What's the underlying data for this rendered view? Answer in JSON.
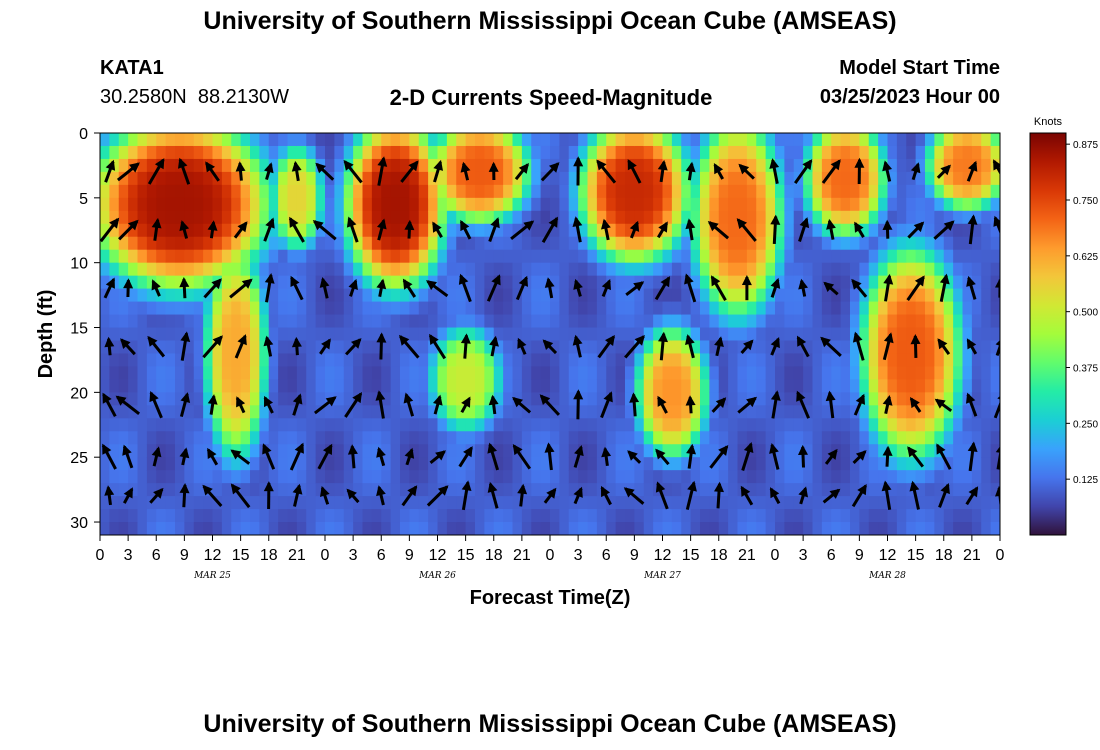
{
  "page_title": "University of Southern Mississippi Ocean Cube (AMSEAS)",
  "footer_title": "University of Southern Mississippi Ocean Cube (AMSEAS)",
  "station": {
    "id": "KATA1",
    "coords": "30.2580N  88.2130W"
  },
  "model_start": {
    "label": "Model Start Time",
    "value": "03/25/2023 Hour 00"
  },
  "chart_data": {
    "type": "heatmap",
    "title": "2-D Currents Speed-Magnitude",
    "xlabel": "Forecast Time(Z)",
    "ylabel": "Depth (ft)",
    "x_tick_labels": [
      "0",
      "3",
      "6",
      "9",
      "12",
      "15",
      "18",
      "21",
      "0",
      "3",
      "6",
      "9",
      "12",
      "15",
      "18",
      "21",
      "0",
      "3",
      "6",
      "9",
      "12",
      "15",
      "18",
      "21",
      "0",
      "3",
      "6",
      "9",
      "12",
      "15",
      "18",
      "21",
      "0"
    ],
    "x_range_hours": [
      0,
      96
    ],
    "date_labels": [
      {
        "label": "MAR 25",
        "hour": 12
      },
      {
        "label": "MAR 26",
        "hour": 36
      },
      {
        "label": "MAR 27",
        "hour": 60
      },
      {
        "label": "MAR 28",
        "hour": 84
      }
    ],
    "y_ticks": [
      0,
      5,
      10,
      15,
      20,
      25,
      30
    ],
    "y_range_ft": [
      0,
      31
    ],
    "y_inverted": true,
    "colorbar": {
      "unit_label": "Knots",
      "ticks": [
        0.125,
        0.25,
        0.375,
        0.5,
        0.625,
        0.75,
        0.875
      ],
      "tick_labels": [
        "0.125",
        "0.250",
        "0.375",
        "0.500",
        "0.625",
        "0.750",
        "0.875"
      ],
      "range": [
        0,
        0.9
      ],
      "colormap": "turbo"
    },
    "high_speed_regions_knots": [
      {
        "hour_range": [
          0,
          17
        ],
        "depth_range_ft": [
          0,
          11
        ],
        "peak": 0.85
      },
      {
        "hour_range": [
          12,
          17
        ],
        "depth_range_ft": [
          10,
          24
        ],
        "peak": 0.62
      },
      {
        "hour_range": [
          19,
          23
        ],
        "depth_range_ft": [
          2,
          8
        ],
        "peak": 0.55
      },
      {
        "hour_range": [
          27,
          36
        ],
        "depth_range_ft": [
          0,
          11
        ],
        "peak": 0.85
      },
      {
        "hour_range": [
          36,
          45
        ],
        "depth_range_ft": [
          0,
          6
        ],
        "peak": 0.72
      },
      {
        "hour_range": [
          36,
          42
        ],
        "depth_range_ft": [
          16,
          22
        ],
        "peak": 0.5
      },
      {
        "hour_range": [
          52,
          62
        ],
        "depth_range_ft": [
          0,
          9
        ],
        "peak": 0.8
      },
      {
        "hour_range": [
          58,
          64
        ],
        "depth_range_ft": [
          16,
          24
        ],
        "peak": 0.65
      },
      {
        "hour_range": [
          64,
          72
        ],
        "depth_range_ft": [
          0,
          13
        ],
        "peak": 0.7
      },
      {
        "hour_range": [
          76,
          83
        ],
        "depth_range_ft": [
          0,
          7
        ],
        "peak": 0.7
      },
      {
        "hour_range": [
          82,
          91
        ],
        "depth_range_ft": [
          10,
          24
        ],
        "peak": 0.72
      },
      {
        "hour_range": [
          89,
          96
        ],
        "depth_range_ft": [
          0,
          5
        ],
        "peak": 0.68
      }
    ],
    "vector_grid": {
      "hours": [
        1,
        3,
        6,
        9,
        12,
        15,
        18,
        21,
        24,
        27,
        30,
        33,
        36,
        39,
        42,
        45,
        48,
        51,
        54,
        57,
        60,
        63,
        66,
        69,
        72,
        75,
        78,
        81,
        84,
        87,
        90,
        93,
        96
      ],
      "depths_ft": [
        3,
        7.5,
        12,
        16.5,
        21,
        25,
        28
      ],
      "arrow_style": "black arrows, length and angle vary with current direction"
    }
  }
}
